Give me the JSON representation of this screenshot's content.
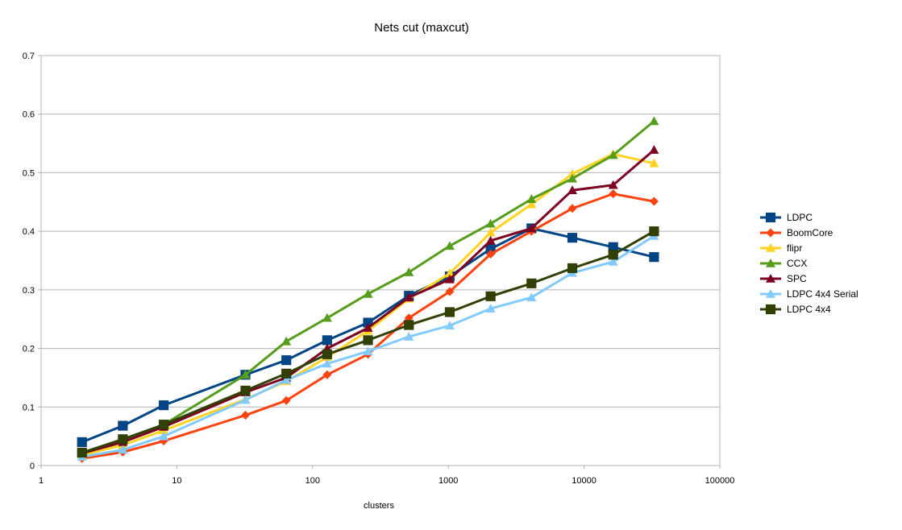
{
  "chart_data": {
    "type": "line",
    "title": "Nets cut (maxcut)",
    "xlabel": "clusters",
    "ylabel": "",
    "x_scale": "log",
    "xlim": [
      1,
      100000
    ],
    "ylim": [
      0,
      0.7
    ],
    "x_ticks": [
      1,
      10,
      100,
      1000,
      10000,
      100000
    ],
    "x_tick_labels": [
      "1",
      "10",
      "100",
      "1000",
      "10000",
      "100000"
    ],
    "y_ticks": [
      0,
      0.1,
      0.2,
      0.3,
      0.4,
      0.5,
      0.6,
      0.7
    ],
    "y_tick_labels": [
      "0",
      "0.1",
      "0.2",
      "0.3",
      "0.4",
      "0.5",
      "0.6",
      "0.7"
    ],
    "grid": "horizontal",
    "legend_position": "right",
    "x": [
      2,
      4,
      8,
      32,
      64,
      128,
      256,
      512,
      1024,
      2048,
      4096,
      8192,
      16384,
      32768
    ],
    "series": [
      {
        "name": "LDPC",
        "color": "#004586",
        "marker": "square",
        "values": [
          0.04,
          0.068,
          0.103,
          0.155,
          0.18,
          0.214,
          0.244,
          0.29,
          0.323,
          0.37,
          0.405,
          0.389,
          0.373,
          0.356
        ]
      },
      {
        "name": "BoomCore",
        "color": "#ff420e",
        "marker": "diamond",
        "values": [
          0.012,
          0.023,
          0.042,
          0.086,
          0.111,
          0.155,
          0.19,
          0.252,
          0.297,
          0.361,
          0.4,
          0.439,
          0.464,
          0.451
        ]
      },
      {
        "name": "flipr",
        "color": "#ffd320",
        "marker": "triangle",
        "values": [
          0.018,
          0.035,
          0.06,
          0.113,
          0.144,
          0.185,
          0.23,
          0.285,
          0.328,
          0.398,
          0.446,
          0.498,
          0.532,
          0.516
        ]
      },
      {
        "name": "CCX",
        "color": "#579d1c",
        "marker": "triangle",
        "values": [
          0.02,
          0.043,
          0.07,
          0.155,
          0.212,
          0.252,
          0.293,
          0.33,
          0.375,
          0.413,
          0.455,
          0.49,
          0.53,
          0.588
        ]
      },
      {
        "name": "SPC",
        "color": "#7e0021",
        "marker": "triangle",
        "values": [
          0.021,
          0.04,
          0.066,
          0.125,
          0.15,
          0.2,
          0.235,
          0.287,
          0.318,
          0.384,
          0.405,
          0.47,
          0.479,
          0.539
        ]
      },
      {
        "name": "LDPC 4x4 Serial",
        "color": "#83caff",
        "marker": "triangle",
        "values": [
          0.015,
          0.027,
          0.05,
          0.112,
          0.146,
          0.174,
          0.195,
          0.22,
          0.239,
          0.268,
          0.287,
          0.329,
          0.348,
          0.392
        ]
      },
      {
        "name": "LDPC 4x4",
        "color": "#314004",
        "marker": "square",
        "values": [
          0.022,
          0.045,
          0.07,
          0.128,
          0.157,
          0.19,
          0.214,
          0.24,
          0.262,
          0.289,
          0.311,
          0.337,
          0.36,
          0.4
        ]
      }
    ]
  }
}
